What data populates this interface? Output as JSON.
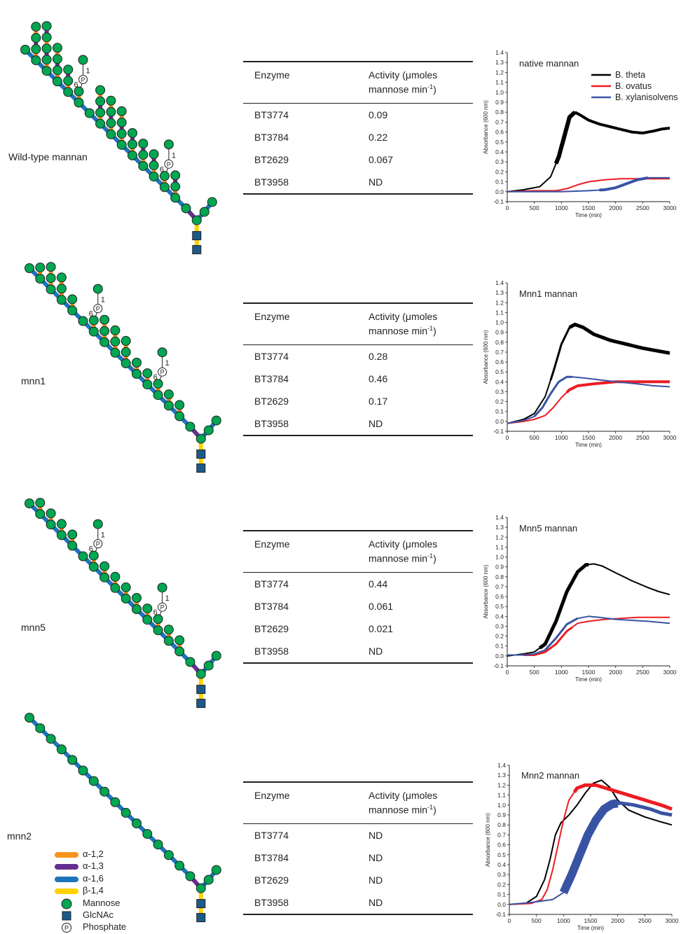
{
  "rows": [
    {
      "label": "Wild-type mannan",
      "table": {
        "header_enzyme": "Enzyme",
        "header_activity_line1": "Activity (μmoles",
        "header_activity_line2": "mannose min",
        "header_activity_sup": "-1",
        "header_activity_end": ")",
        "rows": [
          {
            "enzyme": "BT3774",
            "activity": "0.09"
          },
          {
            "enzyme": "BT3784",
            "activity": "0.22"
          },
          {
            "enzyme": "BT2629",
            "activity": "0.067"
          },
          {
            "enzyme": "BT3958",
            "activity": "ND"
          }
        ]
      },
      "chart_title": "native mannan"
    },
    {
      "label": "mnn1",
      "table": {
        "header_enzyme": "Enzyme",
        "header_activity_line1": "Activity (μmoles",
        "header_activity_line2": "mannose min",
        "header_activity_sup": "-1",
        "header_activity_end": ")",
        "rows": [
          {
            "enzyme": "BT3774",
            "activity": "0.28"
          },
          {
            "enzyme": "BT3784",
            "activity": "0.46"
          },
          {
            "enzyme": "BT2629",
            "activity": "0.17"
          },
          {
            "enzyme": "BT3958",
            "activity": "ND"
          }
        ]
      },
      "chart_title": "Mnn1 mannan"
    },
    {
      "label": "mnn5",
      "table": {
        "header_enzyme": "Enzyme",
        "header_activity_line1": "Activity (μmoles",
        "header_activity_line2": "mannose min",
        "header_activity_sup": "-1",
        "header_activity_end": ")",
        "rows": [
          {
            "enzyme": "BT3774",
            "activity": "0.44"
          },
          {
            "enzyme": "BT3784",
            "activity": "0.061"
          },
          {
            "enzyme": "BT2629",
            "activity": "0.021"
          },
          {
            "enzyme": "BT3958",
            "activity": "ND"
          }
        ]
      },
      "chart_title": "Mnn5 mannan"
    },
    {
      "label": "mnn2",
      "table": {
        "header_enzyme": "Enzyme",
        "header_activity_line1": "Activity (μmoles",
        "header_activity_line2": "mannose min",
        "header_activity_sup": "-1",
        "header_activity_end": ")",
        "rows": [
          {
            "enzyme": "BT3774",
            "activity": "ND"
          },
          {
            "enzyme": "BT3784",
            "activity": "ND"
          },
          {
            "enzyme": "BT2629",
            "activity": "ND"
          },
          {
            "enzyme": "BT3958",
            "activity": "ND"
          }
        ]
      },
      "chart_title": "Mnn2 mannan"
    }
  ],
  "phosphate_labels": {
    "symbol": "P",
    "pos_a": "1",
    "pos_b": "6"
  },
  "legend": [
    {
      "label": "α-1,2",
      "color": "#f7941d"
    },
    {
      "label": "α-1,3",
      "color": "#662d91"
    },
    {
      "label": "α-1,6",
      "color": "#1c75bc"
    },
    {
      "label": "β-1,4",
      "color": "#ffd200"
    },
    {
      "label": "Mannose",
      "color": "#00a651",
      "icon": "green-circle"
    },
    {
      "label": "GlcNAc",
      "color": "#1c5a8a",
      "icon": "blue-square"
    },
    {
      "label": "Phosphate",
      "color": "#ffffff",
      "icon": "circled-p"
    }
  ],
  "colors": {
    "a12": "#f7941d",
    "a13": "#662d91",
    "a16": "#1c75bc",
    "b14": "#ffd200",
    "mannose": "#00a651",
    "glcnac": "#1c5a8a",
    "theta": "#000000",
    "ovatus": "#ed1c24",
    "xylan": "#3953a4"
  },
  "chart_data": [
    {
      "type": "line",
      "title": "native mannan",
      "xlabel": "Time (min)",
      "ylabel": "Absorbance (600 nm)",
      "xlim": [
        0,
        3000
      ],
      "ylim": [
        -0.1,
        1.4
      ],
      "xticks": [
        "0",
        "500",
        "1000",
        "1500",
        "2000",
        "2500",
        "3000"
      ],
      "yticks": [
        "-0.1",
        "0.0",
        "0.1",
        "0.2",
        "0.3",
        "0.4",
        "0.5",
        "0.6",
        "0.7",
        "0.8",
        "0.9",
        "1.0",
        "1.1",
        "1.2",
        "1.3",
        "1.4"
      ],
      "legend": [
        "B. theta",
        "B. ovatus",
        "B. xylanisolvens"
      ],
      "series": [
        {
          "name": "B. theta",
          "color": "#000000",
          "x": [
            0,
            300,
            600,
            800,
            950,
            1050,
            1150,
            1250,
            1350,
            1500,
            1700,
            2000,
            2300,
            2500,
            2700,
            2850,
            3000
          ],
          "y": [
            0.0,
            0.02,
            0.05,
            0.15,
            0.35,
            0.55,
            0.75,
            0.8,
            0.77,
            0.72,
            0.68,
            0.64,
            0.6,
            0.59,
            0.61,
            0.63,
            0.64
          ]
        },
        {
          "name": "B. ovatus",
          "color": "#ed1c24",
          "x": [
            0,
            500,
            900,
            1100,
            1300,
            1500,
            1800,
            2100,
            2400,
            2700,
            3000
          ],
          "y": [
            0.0,
            0.01,
            0.01,
            0.03,
            0.07,
            0.1,
            0.12,
            0.13,
            0.13,
            0.13,
            0.13
          ]
        },
        {
          "name": "B. xylanisolvens",
          "color": "#3953a4",
          "x": [
            0,
            500,
            1000,
            1500,
            1800,
            2000,
            2200,
            2400,
            2600,
            2800,
            3000
          ],
          "y": [
            0.0,
            0.0,
            0.0,
            0.01,
            0.02,
            0.04,
            0.08,
            0.12,
            0.14,
            0.14,
            0.14
          ]
        }
      ]
    },
    {
      "type": "line",
      "title": "Mnn1 mannan",
      "xlabel": "Time (min)",
      "ylabel": "Absorbance (600 nm)",
      "xlim": [
        0,
        3000
      ],
      "ylim": [
        -0.1,
        1.4
      ],
      "xticks": [
        "0",
        "500",
        "1000",
        "1500",
        "2000",
        "2500",
        "3000"
      ],
      "yticks": [
        "-0.1",
        "0.0",
        "0.1",
        "0.2",
        "0.3",
        "0.4",
        "0.5",
        "0.6",
        "0.7",
        "0.8",
        "0.9",
        "1.0",
        "1.1",
        "1.2",
        "1.3",
        "1.4"
      ],
      "series": [
        {
          "name": "B. theta",
          "color": "#000000",
          "x": [
            0,
            300,
            500,
            700,
            850,
            1000,
            1150,
            1250,
            1400,
            1600,
            1900,
            2200,
            2500,
            2800,
            3000
          ],
          "y": [
            -0.02,
            0.02,
            0.08,
            0.25,
            0.5,
            0.78,
            0.95,
            0.98,
            0.95,
            0.88,
            0.82,
            0.78,
            0.74,
            0.71,
            0.69
          ]
        },
        {
          "name": "B. ovatus",
          "color": "#ed1c24",
          "x": [
            0,
            300,
            500,
            700,
            850,
            1000,
            1150,
            1300,
            1600,
            2000,
            2400,
            2700,
            3000
          ],
          "y": [
            -0.02,
            0.0,
            0.02,
            0.06,
            0.14,
            0.24,
            0.32,
            0.36,
            0.38,
            0.4,
            0.4,
            0.4,
            0.4
          ]
        },
        {
          "name": "B. xylanisolvens",
          "color": "#3953a4",
          "x": [
            0,
            300,
            500,
            650,
            800,
            950,
            1100,
            1200,
            1400,
            1700,
            2000,
            2400,
            2700,
            3000
          ],
          "y": [
            -0.02,
            0.01,
            0.05,
            0.14,
            0.28,
            0.4,
            0.45,
            0.45,
            0.44,
            0.42,
            0.4,
            0.38,
            0.36,
            0.35
          ]
        }
      ]
    },
    {
      "type": "line",
      "title": "Mnn5 mannan",
      "xlabel": "Time (min)",
      "ylabel": "Absorbance (600 nm)",
      "xlim": [
        0,
        3000
      ],
      "ylim": [
        -0.1,
        1.4
      ],
      "xticks": [
        "0",
        "500",
        "1000",
        "1500",
        "2000",
        "2500",
        "3000"
      ],
      "yticks": [
        "-0.1",
        "0.0",
        "0.1",
        "0.2",
        "0.3",
        "0.4",
        "0.5",
        "0.6",
        "0.7",
        "0.8",
        "0.9",
        "1.0",
        "1.1",
        "1.2",
        "1.3",
        "1.4"
      ],
      "series": [
        {
          "name": "B. theta",
          "color": "#000000",
          "x": [
            0,
            300,
            500,
            700,
            900,
            1100,
            1300,
            1450,
            1600,
            1750,
            2000,
            2300,
            2600,
            2800,
            3000
          ],
          "y": [
            0.0,
            0.02,
            0.04,
            0.12,
            0.35,
            0.65,
            0.85,
            0.92,
            0.93,
            0.91,
            0.84,
            0.76,
            0.69,
            0.65,
            0.62
          ]
        },
        {
          "name": "B. ovatus",
          "color": "#ed1c24",
          "x": [
            0,
            300,
            500,
            700,
            900,
            1100,
            1300,
            1500,
            1800,
            2100,
            2400,
            2700,
            3000
          ],
          "y": [
            0.01,
            0.01,
            0.01,
            0.04,
            0.12,
            0.25,
            0.33,
            0.35,
            0.37,
            0.38,
            0.39,
            0.39,
            0.39
          ]
        },
        {
          "name": "B. xylanisolvens",
          "color": "#3953a4",
          "x": [
            0,
            300,
            500,
            700,
            900,
            1100,
            1300,
            1500,
            1700,
            2000,
            2300,
            2600,
            3000
          ],
          "y": [
            0.01,
            0.01,
            0.02,
            0.06,
            0.18,
            0.32,
            0.38,
            0.4,
            0.39,
            0.37,
            0.36,
            0.35,
            0.33
          ]
        }
      ]
    },
    {
      "type": "line",
      "title": "Mnn2 mannan",
      "xlabel": "Time (min)",
      "ylabel": "Absorbance (600 nm)",
      "xlim": [
        0,
        3000
      ],
      "ylim": [
        -0.1,
        1.4
      ],
      "xticks": [
        "0",
        "500",
        "1000",
        "1500",
        "2000",
        "2500",
        "3000"
      ],
      "yticks": [
        "-0.1",
        "0.0",
        "0.1",
        "0.2",
        "0.3",
        "0.4",
        "0.5",
        "0.6",
        "0.7",
        "0.8",
        "0.9",
        "1.0",
        "1.1",
        "1.2",
        "1.3",
        "1.4"
      ],
      "series": [
        {
          "name": "B. theta",
          "color": "#000000",
          "x": [
            0,
            300,
            500,
            650,
            750,
            850,
            950,
            1100,
            1250,
            1400,
            1550,
            1700,
            1850,
            2000,
            2200,
            2500,
            2800,
            3000
          ],
          "y": [
            0.0,
            0.01,
            0.08,
            0.25,
            0.45,
            0.7,
            0.82,
            0.9,
            1.0,
            1.12,
            1.22,
            1.25,
            1.18,
            1.05,
            0.95,
            0.88,
            0.83,
            0.8
          ]
        },
        {
          "name": "B. ovatus",
          "color": "#ed1c24",
          "x": [
            0,
            400,
            600,
            700,
            800,
            900,
            1000,
            1100,
            1250,
            1400,
            1600,
            1900,
            2200,
            2500,
            2800,
            3000
          ],
          "y": [
            0.0,
            0.01,
            0.05,
            0.15,
            0.35,
            0.6,
            0.85,
            1.05,
            1.17,
            1.2,
            1.2,
            1.15,
            1.1,
            1.05,
            1.0,
            0.96
          ]
        },
        {
          "name": "B. xylanisolvens",
          "color": "#3953a4",
          "x": [
            0,
            400,
            800,
            1000,
            1150,
            1300,
            1450,
            1600,
            1750,
            1900,
            2050,
            2300,
            2600,
            2800,
            3000
          ],
          "y": [
            0.0,
            0.02,
            0.05,
            0.12,
            0.3,
            0.5,
            0.7,
            0.85,
            0.96,
            1.01,
            1.02,
            1.0,
            0.96,
            0.92,
            0.9
          ]
        }
      ]
    }
  ]
}
